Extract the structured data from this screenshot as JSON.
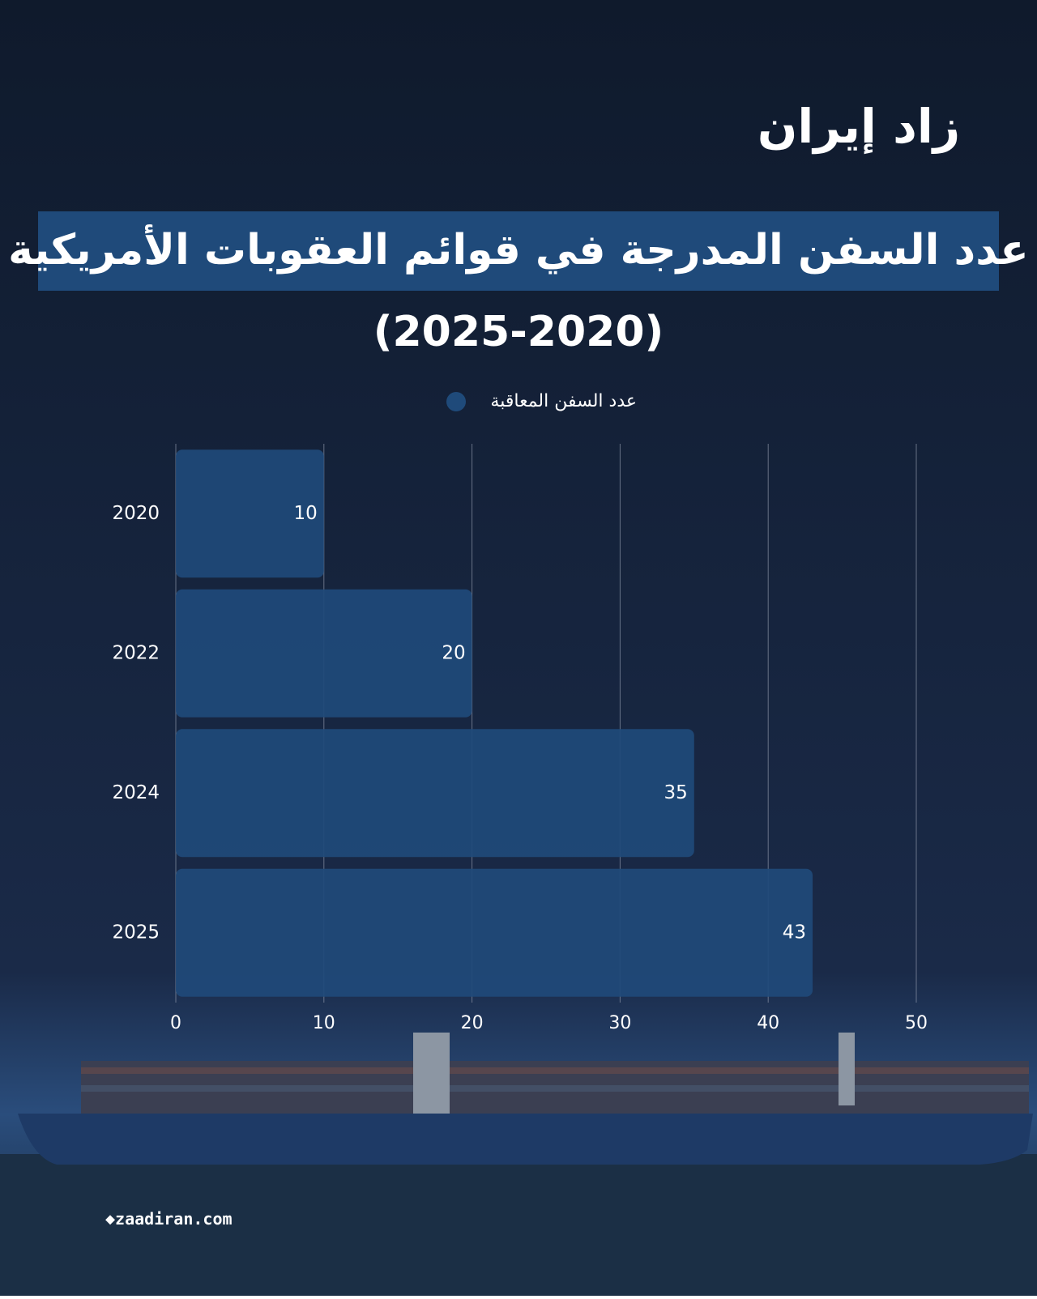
{
  "logo": "زاد إيران",
  "footer": "zaadiran.com",
  "chart_data": {
    "type": "bar",
    "orientation": "horizontal",
    "title": "عدد السفن المدرجة في قوائم العقوبات الأمريكية",
    "subtitle": "(2025-2020)",
    "categories": [
      "2020",
      "2022",
      "2024",
      "2025"
    ],
    "series": [
      {
        "name": "عدد السفن المعاقبة",
        "color": "#1f4a7a",
        "values": [
          10,
          20,
          35,
          43
        ]
      }
    ],
    "xlim": [
      0,
      50
    ],
    "xticks": [
      0,
      10,
      20,
      30,
      40,
      50
    ],
    "grid": true
  }
}
